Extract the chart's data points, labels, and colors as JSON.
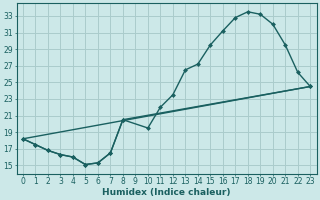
{
  "xlabel": "Humidex (Indice chaleur)",
  "bg_color": "#cce8e8",
  "grid_color": "#aacccc",
  "line_color": "#1a6060",
  "xlim": [
    -0.5,
    23.5
  ],
  "ylim": [
    14.0,
    34.5
  ],
  "xticks": [
    0,
    1,
    2,
    3,
    4,
    5,
    6,
    7,
    8,
    9,
    10,
    11,
    12,
    13,
    14,
    15,
    16,
    17,
    18,
    19,
    20,
    21,
    22,
    23
  ],
  "yticks": [
    15,
    17,
    19,
    21,
    23,
    25,
    27,
    29,
    31,
    33
  ],
  "curve_upper": [
    [
      0,
      18.2
    ],
    [
      1,
      17.5
    ],
    [
      2,
      16.8
    ],
    [
      3,
      16.3
    ],
    [
      4,
      16.0
    ],
    [
      5,
      15.1
    ],
    [
      6,
      15.3
    ],
    [
      7,
      16.5
    ],
    [
      8,
      20.5
    ],
    [
      10,
      19.5
    ],
    [
      11,
      22.0
    ],
    [
      12,
      23.5
    ],
    [
      13,
      26.5
    ],
    [
      14,
      27.2
    ],
    [
      15,
      29.5
    ],
    [
      16,
      31.2
    ],
    [
      17,
      32.8
    ],
    [
      18,
      33.5
    ],
    [
      19,
      33.2
    ],
    [
      20,
      32.0
    ],
    [
      21,
      29.5
    ],
    [
      22,
      26.2
    ],
    [
      23,
      24.5
    ]
  ],
  "curve_diagonal": [
    [
      0,
      18.2
    ],
    [
      23,
      24.5
    ]
  ],
  "curve_bottom_return": [
    [
      0,
      18.2
    ],
    [
      1,
      17.5
    ],
    [
      2,
      16.8
    ],
    [
      3,
      16.3
    ],
    [
      4,
      16.0
    ],
    [
      5,
      15.1
    ],
    [
      6,
      15.3
    ],
    [
      7,
      16.5
    ],
    [
      8,
      20.5
    ],
    [
      23,
      24.5
    ]
  ],
  "marker_size": 2.5,
  "line_width": 1.0,
  "font_size_ticks": 5.5,
  "font_size_xlabel": 6.5
}
